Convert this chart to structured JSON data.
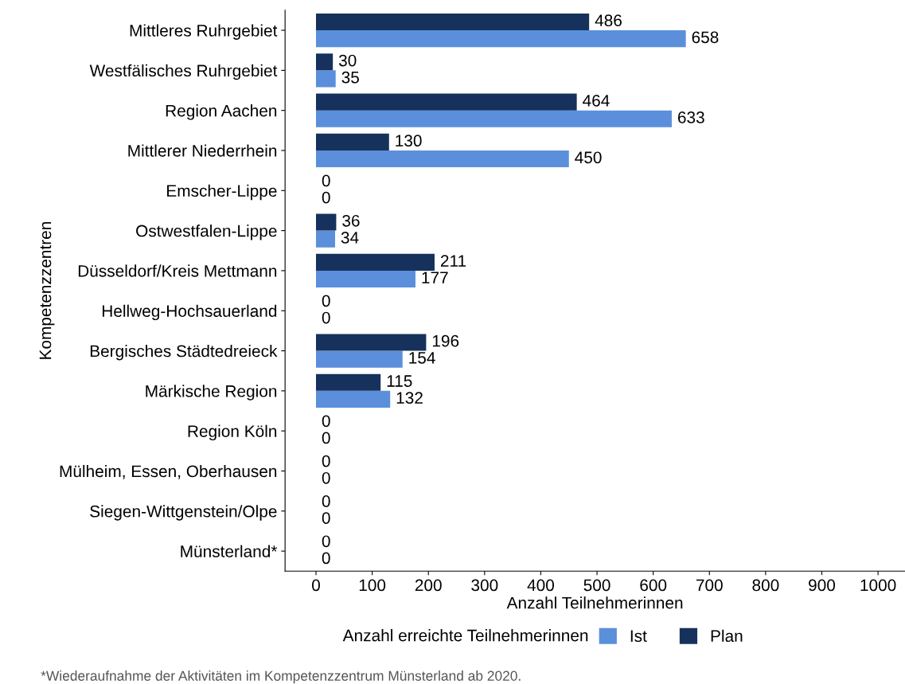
{
  "chart_data": {
    "type": "bar",
    "orientation": "horizontal",
    "xlabel": "Anzahl Teilnehmerinnen",
    "ylabel": "Kompetenzzentren",
    "legend_title": "Anzahl erreichte Teilnehmerinnen",
    "categories": [
      "Mittleres Ruhrgebiet",
      "Westfälisches Ruhrgebiet",
      "Region Aachen",
      "Mittlerer Niederrhein",
      "Emscher-Lippe",
      "Ostwestfalen-Lippe",
      "Düsseldorf/Kreis Mettmann",
      "Hellweg-Hochsauerland",
      "Bergisches Städtedreieck",
      "Märkische Region",
      "Region Köln",
      "Mülheim, Essen, Oberhausen",
      "Siegen-Wittgenstein/Olpe",
      "Münsterland*"
    ],
    "series": [
      {
        "name": "Ist",
        "color": "#5b8fdb",
        "values": [
          658,
          35,
          633,
          450,
          0,
          34,
          177,
          0,
          154,
          132,
          0,
          0,
          0,
          0
        ]
      },
      {
        "name": "Plan",
        "color": "#16325c",
        "values": [
          486,
          30,
          464,
          130,
          0,
          36,
          211,
          0,
          196,
          115,
          0,
          0,
          0,
          0
        ]
      }
    ],
    "xlim": [
      -55,
      1048
    ],
    "xticks": [
      0,
      100,
      200,
      300,
      400,
      500,
      600,
      700,
      800,
      900,
      1000
    ],
    "data_labels": true,
    "grid": false,
    "legend": "bottom",
    "annotations": [
      "*Wiederaufnahme der Aktivitäten im Kompetenzzentrum Münsterland ab 2020."
    ]
  }
}
